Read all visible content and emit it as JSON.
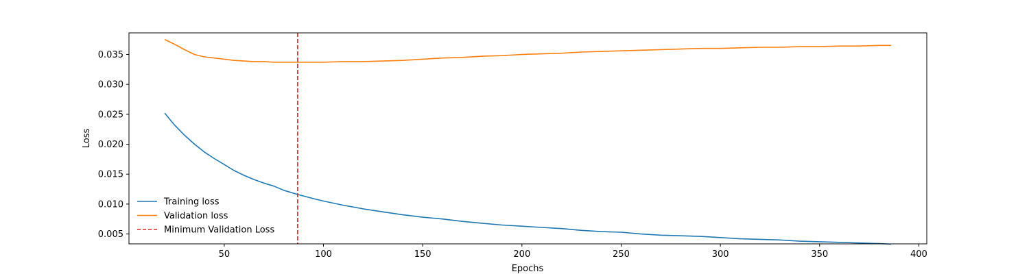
{
  "chart_data": {
    "type": "line",
    "title": "",
    "xlabel": "Epochs",
    "ylabel": "Loss",
    "xlim": [
      2,
      404
    ],
    "ylim": [
      0.00335,
      0.0386
    ],
    "x_ticks": [
      50,
      100,
      150,
      200,
      250,
      300,
      350,
      400
    ],
    "y_ticks": [
      0.005,
      0.01,
      0.015,
      0.02,
      0.025,
      0.03,
      0.035
    ],
    "y_tick_labels": [
      "0.005",
      "0.010",
      "0.015",
      "0.020",
      "0.025",
      "0.030",
      "0.035"
    ],
    "grid": false,
    "legend_position": "lower-left",
    "series": [
      {
        "name": "Training loss",
        "color": "#1f77b4",
        "style": "solid",
        "x": [
          20,
          25,
          30,
          35,
          40,
          45,
          50,
          55,
          60,
          65,
          70,
          75,
          80,
          87,
          95,
          100,
          110,
          120,
          130,
          140,
          150,
          160,
          170,
          180,
          190,
          200,
          210,
          220,
          230,
          240,
          250,
          260,
          270,
          280,
          290,
          300,
          310,
          320,
          330,
          340,
          350,
          360,
          370,
          380,
          386
        ],
        "y": [
          0.0252,
          0.0232,
          0.0215,
          0.02,
          0.0187,
          0.0176,
          0.0166,
          0.0156,
          0.0148,
          0.0141,
          0.0135,
          0.013,
          0.0123,
          0.0116,
          0.0109,
          0.0105,
          0.0098,
          0.0092,
          0.0087,
          0.0082,
          0.0078,
          0.0075,
          0.0071,
          0.0068,
          0.0065,
          0.0063,
          0.0061,
          0.0059,
          0.0056,
          0.0054,
          0.0053,
          0.005,
          0.0048,
          0.0047,
          0.0046,
          0.0044,
          0.0042,
          0.0041,
          0.004,
          0.0038,
          0.0037,
          0.0036,
          0.0035,
          0.0034,
          0.0033
        ]
      },
      {
        "name": "Validation loss",
        "color": "#ff7f0e",
        "style": "solid",
        "x": [
          20,
          25,
          30,
          35,
          40,
          45,
          50,
          55,
          60,
          65,
          70,
          75,
          80,
          87,
          95,
          100,
          110,
          120,
          130,
          140,
          150,
          160,
          170,
          180,
          190,
          200,
          210,
          220,
          230,
          240,
          250,
          260,
          270,
          280,
          290,
          300,
          310,
          320,
          330,
          340,
          350,
          360,
          370,
          380,
          386
        ],
        "y": [
          0.0375,
          0.0367,
          0.0358,
          0.035,
          0.0346,
          0.0344,
          0.0342,
          0.034,
          0.0339,
          0.0338,
          0.0338,
          0.0337,
          0.0337,
          0.0337,
          0.0337,
          0.0337,
          0.0338,
          0.0338,
          0.0339,
          0.034,
          0.0342,
          0.0344,
          0.0345,
          0.0347,
          0.0348,
          0.035,
          0.0351,
          0.0352,
          0.0354,
          0.0355,
          0.0356,
          0.0357,
          0.0358,
          0.0359,
          0.036,
          0.036,
          0.0361,
          0.0362,
          0.0362,
          0.0363,
          0.0363,
          0.0364,
          0.0364,
          0.0365,
          0.0365
        ]
      }
    ],
    "vertical_lines": [
      {
        "name": "Minimum Validation Loss",
        "x": 87,
        "color": "#d62728",
        "style": "dashed"
      }
    ]
  }
}
